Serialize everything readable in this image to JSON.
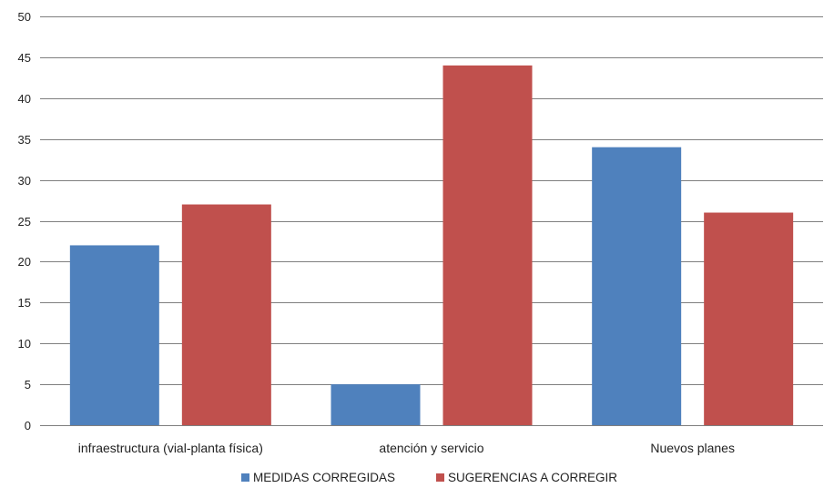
{
  "chart_data": {
    "type": "bar",
    "categories": [
      "infraestructura (vial-planta física)",
      "atención y servicio",
      "Nuevos planes"
    ],
    "series": [
      {
        "name": "MEDIDAS CORREGIDAS",
        "values": [
          22,
          5,
          34
        ],
        "color": "#4F81BD"
      },
      {
        "name": "SUGERENCIAS A CORREGIR",
        "values": [
          27,
          44,
          26
        ],
        "color": "#C0504D"
      }
    ],
    "ylim": [
      0,
      50
    ],
    "yticks": [
      0,
      5,
      10,
      15,
      20,
      25,
      30,
      35,
      40,
      45,
      50
    ],
    "grid": true,
    "legend_position": "bottom",
    "title": "",
    "xlabel": "",
    "ylabel": ""
  }
}
